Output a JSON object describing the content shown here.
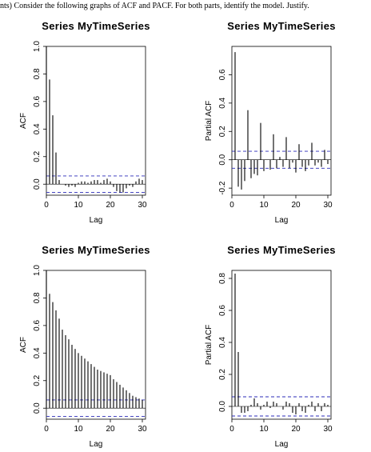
{
  "header": {
    "text": "nts) Consider the following graphs of ACF and PACF. For both parts, identify the model. Justify."
  },
  "colors": {
    "bar": "#000000",
    "ci": "#2b2bb8",
    "axis": "#000000"
  },
  "chart_data": [
    {
      "type": "bar",
      "title": "Series MyTimeSeries",
      "xlabel": "Lag",
      "ylabel": "ACF",
      "xlim": [
        0,
        31
      ],
      "ylim": [
        -0.08,
        1.0
      ],
      "xticks": [
        "0",
        "10",
        "20",
        "30"
      ],
      "yticks": [
        "0.0",
        "0.2",
        "0.4",
        "0.6",
        "0.8",
        "1.0"
      ],
      "ci": 0.06,
      "x": [
        0,
        1,
        2,
        3,
        4,
        5,
        6,
        7,
        8,
        9,
        10,
        11,
        12,
        13,
        14,
        15,
        16,
        17,
        18,
        19,
        20,
        21,
        22,
        23,
        24,
        25,
        26,
        27,
        28,
        29,
        30
      ],
      "values": [
        1.0,
        0.76,
        0.5,
        0.23,
        0.03,
        0.0,
        -0.01,
        -0.02,
        -0.01,
        -0.02,
        0.01,
        0.02,
        0.02,
        0.01,
        0.02,
        0.03,
        0.03,
        0.01,
        0.03,
        0.04,
        0.02,
        -0.02,
        -0.05,
        -0.06,
        -0.06,
        -0.03,
        -0.01,
        -0.02,
        0.02,
        0.04,
        0.03
      ]
    },
    {
      "type": "bar",
      "title": "Series MyTimeSeries",
      "xlabel": "Lag",
      "ylabel": "Partial ACF",
      "xlim": [
        0,
        31
      ],
      "ylim": [
        -0.25,
        0.8
      ],
      "xticks": [
        "0",
        "10",
        "20",
        "30"
      ],
      "yticks": [
        "-0.2",
        "0.0",
        "0.2",
        "0.4",
        "0.6"
      ],
      "ci": 0.06,
      "x": [
        1,
        2,
        3,
        4,
        5,
        6,
        7,
        8,
        9,
        10,
        11,
        12,
        13,
        14,
        15,
        16,
        17,
        18,
        19,
        20,
        21,
        22,
        23,
        24,
        25,
        26,
        27,
        28,
        29,
        30
      ],
      "values": [
        0.76,
        -0.19,
        -0.21,
        -0.15,
        0.35,
        -0.13,
        -0.1,
        -0.11,
        0.26,
        -0.08,
        0.0,
        -0.07,
        0.18,
        -0.06,
        0.02,
        -0.05,
        0.16,
        -0.06,
        -0.02,
        -0.09,
        0.11,
        -0.05,
        -0.08,
        -0.04,
        0.12,
        -0.04,
        -0.02,
        -0.05,
        0.07,
        -0.03
      ]
    },
    {
      "type": "bar",
      "title": "Series MyTimeSeries",
      "xlabel": "Lag",
      "ylabel": "ACF",
      "xlim": [
        0,
        31
      ],
      "ylim": [
        -0.08,
        1.0
      ],
      "xticks": [
        "0",
        "10",
        "20",
        "30"
      ],
      "yticks": [
        "0.0",
        "0.2",
        "0.4",
        "0.6",
        "0.8",
        "1.0"
      ],
      "ci": 0.06,
      "x": [
        0,
        1,
        2,
        3,
        4,
        5,
        6,
        7,
        8,
        9,
        10,
        11,
        12,
        13,
        14,
        15,
        16,
        17,
        18,
        19,
        20,
        21,
        22,
        23,
        24,
        25,
        26,
        27,
        28,
        29,
        30
      ],
      "values": [
        1.0,
        0.83,
        0.77,
        0.71,
        0.65,
        0.57,
        0.53,
        0.5,
        0.46,
        0.43,
        0.4,
        0.38,
        0.36,
        0.34,
        0.32,
        0.3,
        0.28,
        0.27,
        0.26,
        0.25,
        0.24,
        0.21,
        0.19,
        0.17,
        0.15,
        0.13,
        0.11,
        0.09,
        0.08,
        0.07,
        0.06
      ]
    },
    {
      "type": "bar",
      "title": "Series MyTimeSeries",
      "xlabel": "Lag",
      "ylabel": "Partial ACF",
      "xlim": [
        0,
        31
      ],
      "ylim": [
        -0.08,
        0.85
      ],
      "xticks": [
        "0",
        "10",
        "20",
        "30"
      ],
      "yticks": [
        "0.0",
        "0.2",
        "0.4",
        "0.6",
        "0.8"
      ],
      "ci": 0.06,
      "x": [
        1,
        2,
        3,
        4,
        5,
        6,
        7,
        8,
        9,
        10,
        11,
        12,
        13,
        14,
        15,
        16,
        17,
        18,
        19,
        20,
        21,
        22,
        23,
        24,
        25,
        26,
        27,
        28,
        29,
        30
      ],
      "values": [
        0.83,
        0.34,
        -0.04,
        -0.04,
        -0.03,
        0.01,
        0.05,
        0.02,
        -0.02,
        0.01,
        0.03,
        -0.01,
        0.03,
        0.02,
        0.0,
        -0.02,
        0.03,
        0.02,
        -0.04,
        -0.05,
        0.02,
        -0.03,
        -0.04,
        0.01,
        0.03,
        -0.03,
        0.02,
        -0.03,
        0.02,
        0.01
      ]
    }
  ]
}
